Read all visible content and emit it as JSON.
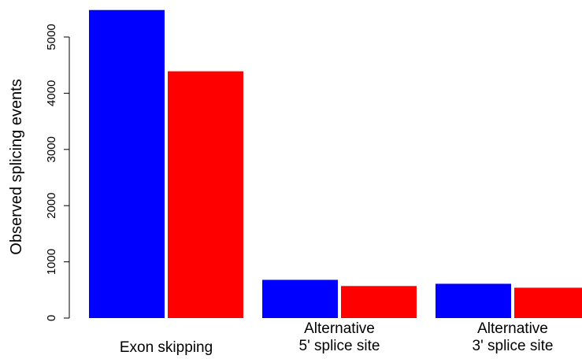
{
  "chart_data": {
    "type": "bar",
    "title": "",
    "xlabel": "",
    "ylabel": "Observed splicing events",
    "ylim": [
      0,
      5500
    ],
    "yticks": [
      0,
      1000,
      2000,
      3000,
      4000,
      5000
    ],
    "grid": false,
    "categories": [
      [
        "Exon skipping"
      ],
      [
        "Alternative",
        "5' splice site"
      ],
      [
        "Alternative",
        "3' splice site"
      ]
    ],
    "series": [
      {
        "color": "#0000ff",
        "values": [
          5480,
          680,
          610
        ]
      },
      {
        "color": "#ff0000",
        "values": [
          4390,
          570,
          540
        ]
      }
    ]
  }
}
